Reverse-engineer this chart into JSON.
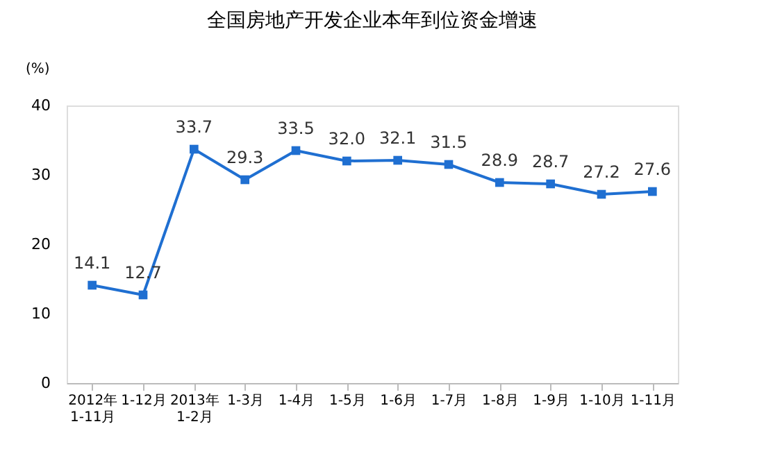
{
  "chart_data": {
    "type": "line",
    "title": "全国房地产开发企业本年到位资金增速",
    "ylabel": "(%)",
    "categories": [
      "2012年\n1-11月",
      "1-12月",
      "2013年\n1-2月",
      "1-3月",
      "1-4月",
      "1-5月",
      "1-6月",
      "1-7月",
      "1-8月",
      "1-9月",
      "1-10月",
      "1-11月"
    ],
    "series": [
      {
        "color": "#1f6fd1",
        "values": [
          14.1,
          12.7,
          33.7,
          29.3,
          33.5,
          32.0,
          32.1,
          31.5,
          28.9,
          28.7,
          27.2,
          27.6
        ],
        "value_labels": [
          "14.1",
          "12.7",
          "33.7",
          "29.3",
          "33.5",
          "32.0",
          "32.1",
          "31.5",
          "28.9",
          "28.7",
          "27.2",
          "27.6"
        ]
      }
    ],
    "ylim": [
      0,
      40
    ],
    "yticks": [
      0,
      10,
      20,
      30,
      40
    ],
    "grid": false,
    "marker": "square",
    "line_style": "solid"
  }
}
